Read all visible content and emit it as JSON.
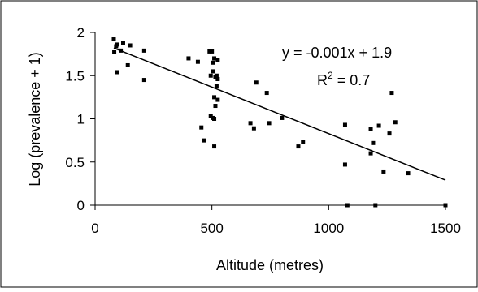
{
  "chart_data": {
    "type": "scatter",
    "xlabel": "Altitude (metres)",
    "ylabel": "Log (prevalence + 1)",
    "xlim": [
      0,
      1500
    ],
    "ylim": [
      0,
      2
    ],
    "xticks": [
      "0",
      "500",
      "1000",
      "1500"
    ],
    "yticks": [
      "0",
      "0.5",
      "1",
      "1.5",
      "2"
    ],
    "x_tick_values": [
      0,
      500,
      1000,
      1500
    ],
    "y_tick_values": [
      0,
      0.5,
      1,
      1.5,
      2
    ],
    "grid": false,
    "legend": "none",
    "annotation_equation": "y = -0.001x + 1.9",
    "annotation_r2_prefix": "R",
    "annotation_r2_sup": "2",
    "annotation_r2_value": " = 0.7",
    "trendline": {
      "x": [
        80,
        1500
      ],
      "y": [
        1.82,
        0.29
      ]
    },
    "points": [
      {
        "x": 80,
        "y": 1.92
      },
      {
        "x": 82,
        "y": 1.77
      },
      {
        "x": 90,
        "y": 1.84
      },
      {
        "x": 95,
        "y": 1.86
      },
      {
        "x": 95,
        "y": 1.54
      },
      {
        "x": 110,
        "y": 1.79
      },
      {
        "x": 120,
        "y": 1.88
      },
      {
        "x": 150,
        "y": 1.85
      },
      {
        "x": 140,
        "y": 1.62
      },
      {
        "x": 210,
        "y": 1.79
      },
      {
        "x": 210,
        "y": 1.45
      },
      {
        "x": 400,
        "y": 1.7
      },
      {
        "x": 440,
        "y": 1.66
      },
      {
        "x": 455,
        "y": 0.9
      },
      {
        "x": 465,
        "y": 0.75
      },
      {
        "x": 490,
        "y": 1.78
      },
      {
        "x": 500,
        "y": 1.78
      },
      {
        "x": 495,
        "y": 1.5
      },
      {
        "x": 505,
        "y": 1.65
      },
      {
        "x": 510,
        "y": 1.7
      },
      {
        "x": 505,
        "y": 1.55
      },
      {
        "x": 515,
        "y": 1.48
      },
      {
        "x": 520,
        "y": 1.5
      },
      {
        "x": 520,
        "y": 1.38
      },
      {
        "x": 525,
        "y": 1.46
      },
      {
        "x": 525,
        "y": 1.68
      },
      {
        "x": 510,
        "y": 1.25
      },
      {
        "x": 515,
        "y": 1.15
      },
      {
        "x": 525,
        "y": 1.22
      },
      {
        "x": 495,
        "y": 1.03
      },
      {
        "x": 505,
        "y": 1.01
      },
      {
        "x": 510,
        "y": 1.0
      },
      {
        "x": 510,
        "y": 0.68
      },
      {
        "x": 665,
        "y": 0.95
      },
      {
        "x": 680,
        "y": 0.89
      },
      {
        "x": 690,
        "y": 1.42
      },
      {
        "x": 735,
        "y": 1.3
      },
      {
        "x": 745,
        "y": 0.95
      },
      {
        "x": 800,
        "y": 1.01
      },
      {
        "x": 870,
        "y": 0.68
      },
      {
        "x": 890,
        "y": 0.73
      },
      {
        "x": 1070,
        "y": 0.93
      },
      {
        "x": 1070,
        "y": 0.47
      },
      {
        "x": 1080,
        "y": 0.0
      },
      {
        "x": 1180,
        "y": 0.88
      },
      {
        "x": 1180,
        "y": 0.6
      },
      {
        "x": 1190,
        "y": 0.72
      },
      {
        "x": 1200,
        "y": 0.0
      },
      {
        "x": 1215,
        "y": 0.92
      },
      {
        "x": 1235,
        "y": 0.39
      },
      {
        "x": 1260,
        "y": 0.83
      },
      {
        "x": 1270,
        "y": 1.3
      },
      {
        "x": 1285,
        "y": 0.96
      },
      {
        "x": 1340,
        "y": 0.37
      },
      {
        "x": 1500,
        "y": 0.0
      }
    ]
  }
}
